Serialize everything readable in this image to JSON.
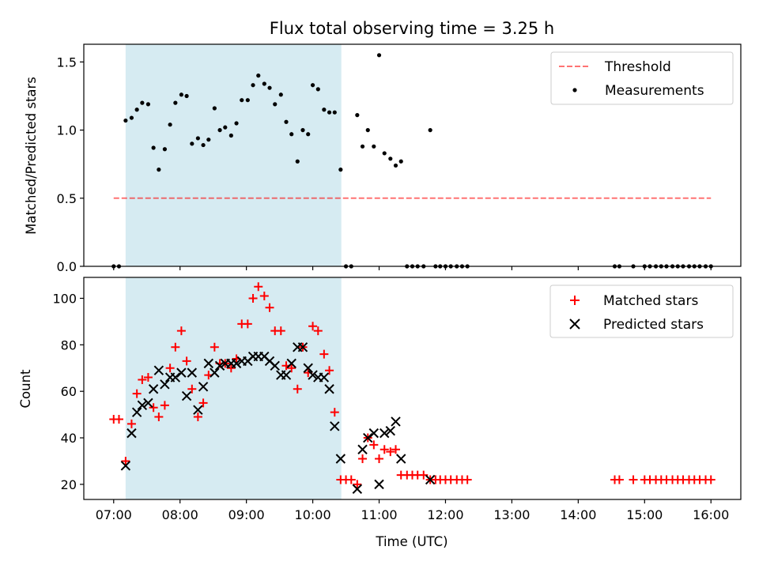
{
  "figure": {
    "title": "Flux total observing time = 3.25 h",
    "xlabel": "Time (UTC)"
  },
  "colors": {
    "shade": "#add8e6",
    "threshold": "#ff0000",
    "matched": "#ff0000",
    "predicted": "#000000",
    "measurements": "#000000"
  },
  "chart_data": [
    {
      "type": "scatter",
      "title": "Flux total observing time = 3.25 h",
      "xlabel": "",
      "ylabel": "Matched/Predicted stars",
      "x_unit": "hours UTC",
      "xlim": [
        6.55,
        16.45
      ],
      "ylim": [
        0,
        1.63
      ],
      "yticks": [
        0.0,
        0.5,
        1.0,
        1.5
      ],
      "ytick_labels": [
        "0.0",
        "0.5",
        "1.0",
        "1.5"
      ],
      "legend_position": "top-right",
      "shaded_x_range": [
        7.18,
        10.43
      ],
      "series": [
        {
          "name": "Threshold",
          "kind": "dashed-line",
          "points": [
            [
              7.0,
              0.5
            ],
            [
              16.0,
              0.5
            ]
          ]
        },
        {
          "name": "Measurements",
          "kind": "dots",
          "points": [
            [
              7.0,
              0
            ],
            [
              7.08,
              0
            ],
            [
              7.18,
              1.07
            ],
            [
              7.27,
              1.09
            ],
            [
              7.35,
              1.15
            ],
            [
              7.43,
              1.2
            ],
            [
              7.52,
              1.19
            ],
            [
              7.6,
              0.87
            ],
            [
              7.68,
              0.71
            ],
            [
              7.77,
              0.86
            ],
            [
              7.85,
              1.04
            ],
            [
              7.93,
              1.2
            ],
            [
              8.02,
              1.26
            ],
            [
              8.1,
              1.25
            ],
            [
              8.18,
              0.9
            ],
            [
              8.27,
              0.94
            ],
            [
              8.35,
              0.89
            ],
            [
              8.43,
              0.93
            ],
            [
              8.52,
              1.16
            ],
            [
              8.6,
              1.0
            ],
            [
              8.68,
              1.02
            ],
            [
              8.77,
              0.96
            ],
            [
              8.85,
              1.05
            ],
            [
              8.93,
              1.22
            ],
            [
              9.02,
              1.22
            ],
            [
              9.1,
              1.33
            ],
            [
              9.18,
              1.4
            ],
            [
              9.27,
              1.34
            ],
            [
              9.35,
              1.31
            ],
            [
              9.43,
              1.19
            ],
            [
              9.52,
              1.26
            ],
            [
              9.6,
              1.06
            ],
            [
              9.68,
              0.97
            ],
            [
              9.77,
              0.77
            ],
            [
              9.85,
              1.0
            ],
            [
              9.93,
              0.97
            ],
            [
              10.0,
              1.33
            ],
            [
              10.08,
              1.3
            ],
            [
              10.17,
              1.15
            ],
            [
              10.25,
              1.13
            ],
            [
              10.33,
              1.13
            ],
            [
              10.42,
              0.71
            ],
            [
              10.5,
              0
            ],
            [
              10.58,
              0
            ],
            [
              10.67,
              1.11
            ],
            [
              10.75,
              0.88
            ],
            [
              10.83,
              1.0
            ],
            [
              10.92,
              0.88
            ],
            [
              11.0,
              1.55
            ],
            [
              11.08,
              0.83
            ],
            [
              11.17,
              0.79
            ],
            [
              11.25,
              0.74
            ],
            [
              11.33,
              0.77
            ],
            [
              11.42,
              0
            ],
            [
              11.5,
              0
            ],
            [
              11.58,
              0
            ],
            [
              11.67,
              0
            ],
            [
              11.77,
              1.0
            ],
            [
              11.85,
              0
            ],
            [
              11.92,
              0
            ],
            [
              12.0,
              0
            ],
            [
              12.08,
              0
            ],
            [
              12.17,
              0
            ],
            [
              12.25,
              0
            ],
            [
              12.33,
              0
            ],
            [
              14.55,
              0
            ],
            [
              14.62,
              0
            ],
            [
              14.83,
              0
            ],
            [
              15.0,
              0
            ],
            [
              15.08,
              0
            ],
            [
              15.17,
              0
            ],
            [
              15.25,
              0
            ],
            [
              15.33,
              0
            ],
            [
              15.42,
              0
            ],
            [
              15.5,
              0
            ],
            [
              15.58,
              0
            ],
            [
              15.67,
              0
            ],
            [
              15.75,
              0
            ],
            [
              15.83,
              0
            ],
            [
              15.92,
              0
            ],
            [
              16.0,
              0
            ]
          ]
        }
      ]
    },
    {
      "type": "scatter",
      "title": "",
      "xlabel": "Time (UTC)",
      "ylabel": "Count",
      "x_unit": "hours UTC",
      "xlim": [
        6.55,
        16.45
      ],
      "ylim": [
        13.5,
        109
      ],
      "yticks": [
        20,
        40,
        60,
        80,
        100
      ],
      "ytick_labels": [
        "20",
        "40",
        "60",
        "80",
        "100"
      ],
      "xticks": [
        7,
        8,
        9,
        10,
        11,
        12,
        13,
        14,
        15,
        16
      ],
      "xtick_labels": [
        "07:00",
        "08:00",
        "09:00",
        "10:00",
        "11:00",
        "12:00",
        "13:00",
        "14:00",
        "15:00",
        "16:00"
      ],
      "legend_position": "top-right",
      "shaded_x_range": [
        7.18,
        10.43
      ],
      "series": [
        {
          "name": "Matched stars",
          "marker": "plus",
          "points": [
            [
              7.0,
              48
            ],
            [
              7.08,
              48
            ],
            [
              7.18,
              30
            ],
            [
              7.27,
              46
            ],
            [
              7.35,
              59
            ],
            [
              7.43,
              65
            ],
            [
              7.52,
              66
            ],
            [
              7.6,
              53
            ],
            [
              7.68,
              49
            ],
            [
              7.77,
              54
            ],
            [
              7.85,
              70
            ],
            [
              7.93,
              79
            ],
            [
              8.02,
              86
            ],
            [
              8.1,
              73
            ],
            [
              8.18,
              61
            ],
            [
              8.27,
              49
            ],
            [
              8.35,
              55
            ],
            [
              8.43,
              67
            ],
            [
              8.52,
              79
            ],
            [
              8.6,
              72
            ],
            [
              8.68,
              72
            ],
            [
              8.77,
              70
            ],
            [
              8.85,
              74
            ],
            [
              8.93,
              89
            ],
            [
              9.02,
              89
            ],
            [
              9.1,
              100
            ],
            [
              9.18,
              105
            ],
            [
              9.27,
              101
            ],
            [
              9.35,
              96
            ],
            [
              9.43,
              86
            ],
            [
              9.52,
              86
            ],
            [
              9.6,
              71
            ],
            [
              9.68,
              70
            ],
            [
              9.77,
              61
            ],
            [
              9.85,
              79
            ],
            [
              9.93,
              68
            ],
            [
              10.0,
              88
            ],
            [
              10.08,
              86
            ],
            [
              10.17,
              76
            ],
            [
              10.25,
              69
            ],
            [
              10.33,
              51
            ],
            [
              10.42,
              22
            ],
            [
              10.5,
              22
            ],
            [
              10.58,
              22
            ],
            [
              10.67,
              20
            ],
            [
              10.75,
              31
            ],
            [
              10.83,
              40
            ],
            [
              10.92,
              37
            ],
            [
              11.0,
              31
            ],
            [
              11.08,
              35
            ],
            [
              11.17,
              34
            ],
            [
              11.25,
              35
            ],
            [
              11.33,
              24
            ],
            [
              11.42,
              24
            ],
            [
              11.5,
              24
            ],
            [
              11.58,
              24
            ],
            [
              11.67,
              24
            ],
            [
              11.77,
              22
            ],
            [
              11.85,
              22
            ],
            [
              11.92,
              22
            ],
            [
              12.0,
              22
            ],
            [
              12.08,
              22
            ],
            [
              12.17,
              22
            ],
            [
              12.25,
              22
            ],
            [
              12.33,
              22
            ],
            [
              14.55,
              22
            ],
            [
              14.62,
              22
            ],
            [
              14.83,
              22
            ],
            [
              15.0,
              22
            ],
            [
              15.08,
              22
            ],
            [
              15.17,
              22
            ],
            [
              15.25,
              22
            ],
            [
              15.33,
              22
            ],
            [
              15.42,
              22
            ],
            [
              15.5,
              22
            ],
            [
              15.58,
              22
            ],
            [
              15.67,
              22
            ],
            [
              15.75,
              22
            ],
            [
              15.83,
              22
            ],
            [
              15.92,
              22
            ],
            [
              16.0,
              22
            ]
          ]
        },
        {
          "name": "Predicted stars",
          "marker": "x",
          "points": [
            [
              7.18,
              28
            ],
            [
              7.27,
              42
            ],
            [
              7.35,
              51
            ],
            [
              7.43,
              54
            ],
            [
              7.52,
              55
            ],
            [
              7.6,
              61
            ],
            [
              7.68,
              69
            ],
            [
              7.77,
              63
            ],
            [
              7.85,
              66
            ],
            [
              7.93,
              66
            ],
            [
              8.02,
              68
            ],
            [
              8.1,
              58
            ],
            [
              8.18,
              68
            ],
            [
              8.27,
              52
            ],
            [
              8.35,
              62
            ],
            [
              8.43,
              72
            ],
            [
              8.52,
              68
            ],
            [
              8.6,
              71
            ],
            [
              8.68,
              72
            ],
            [
              8.77,
              72
            ],
            [
              8.85,
              72
            ],
            [
              8.93,
              73
            ],
            [
              9.02,
              73
            ],
            [
              9.1,
              75
            ],
            [
              9.18,
              75
            ],
            [
              9.27,
              75
            ],
            [
              9.35,
              73
            ],
            [
              9.43,
              71
            ],
            [
              9.52,
              67
            ],
            [
              9.6,
              67
            ],
            [
              9.68,
              72
            ],
            [
              9.77,
              79
            ],
            [
              9.85,
              79
            ],
            [
              9.93,
              70
            ],
            [
              10.0,
              67
            ],
            [
              10.08,
              66
            ],
            [
              10.17,
              66
            ],
            [
              10.25,
              61
            ],
            [
              10.33,
              45
            ],
            [
              10.42,
              31
            ],
            [
              10.67,
              18
            ],
            [
              10.75,
              35
            ],
            [
              10.83,
              40
            ],
            [
              10.92,
              42
            ],
            [
              11.0,
              20
            ],
            [
              11.08,
              42
            ],
            [
              11.17,
              43
            ],
            [
              11.25,
              47
            ],
            [
              11.33,
              31
            ],
            [
              11.77,
              22
            ]
          ]
        }
      ]
    }
  ]
}
